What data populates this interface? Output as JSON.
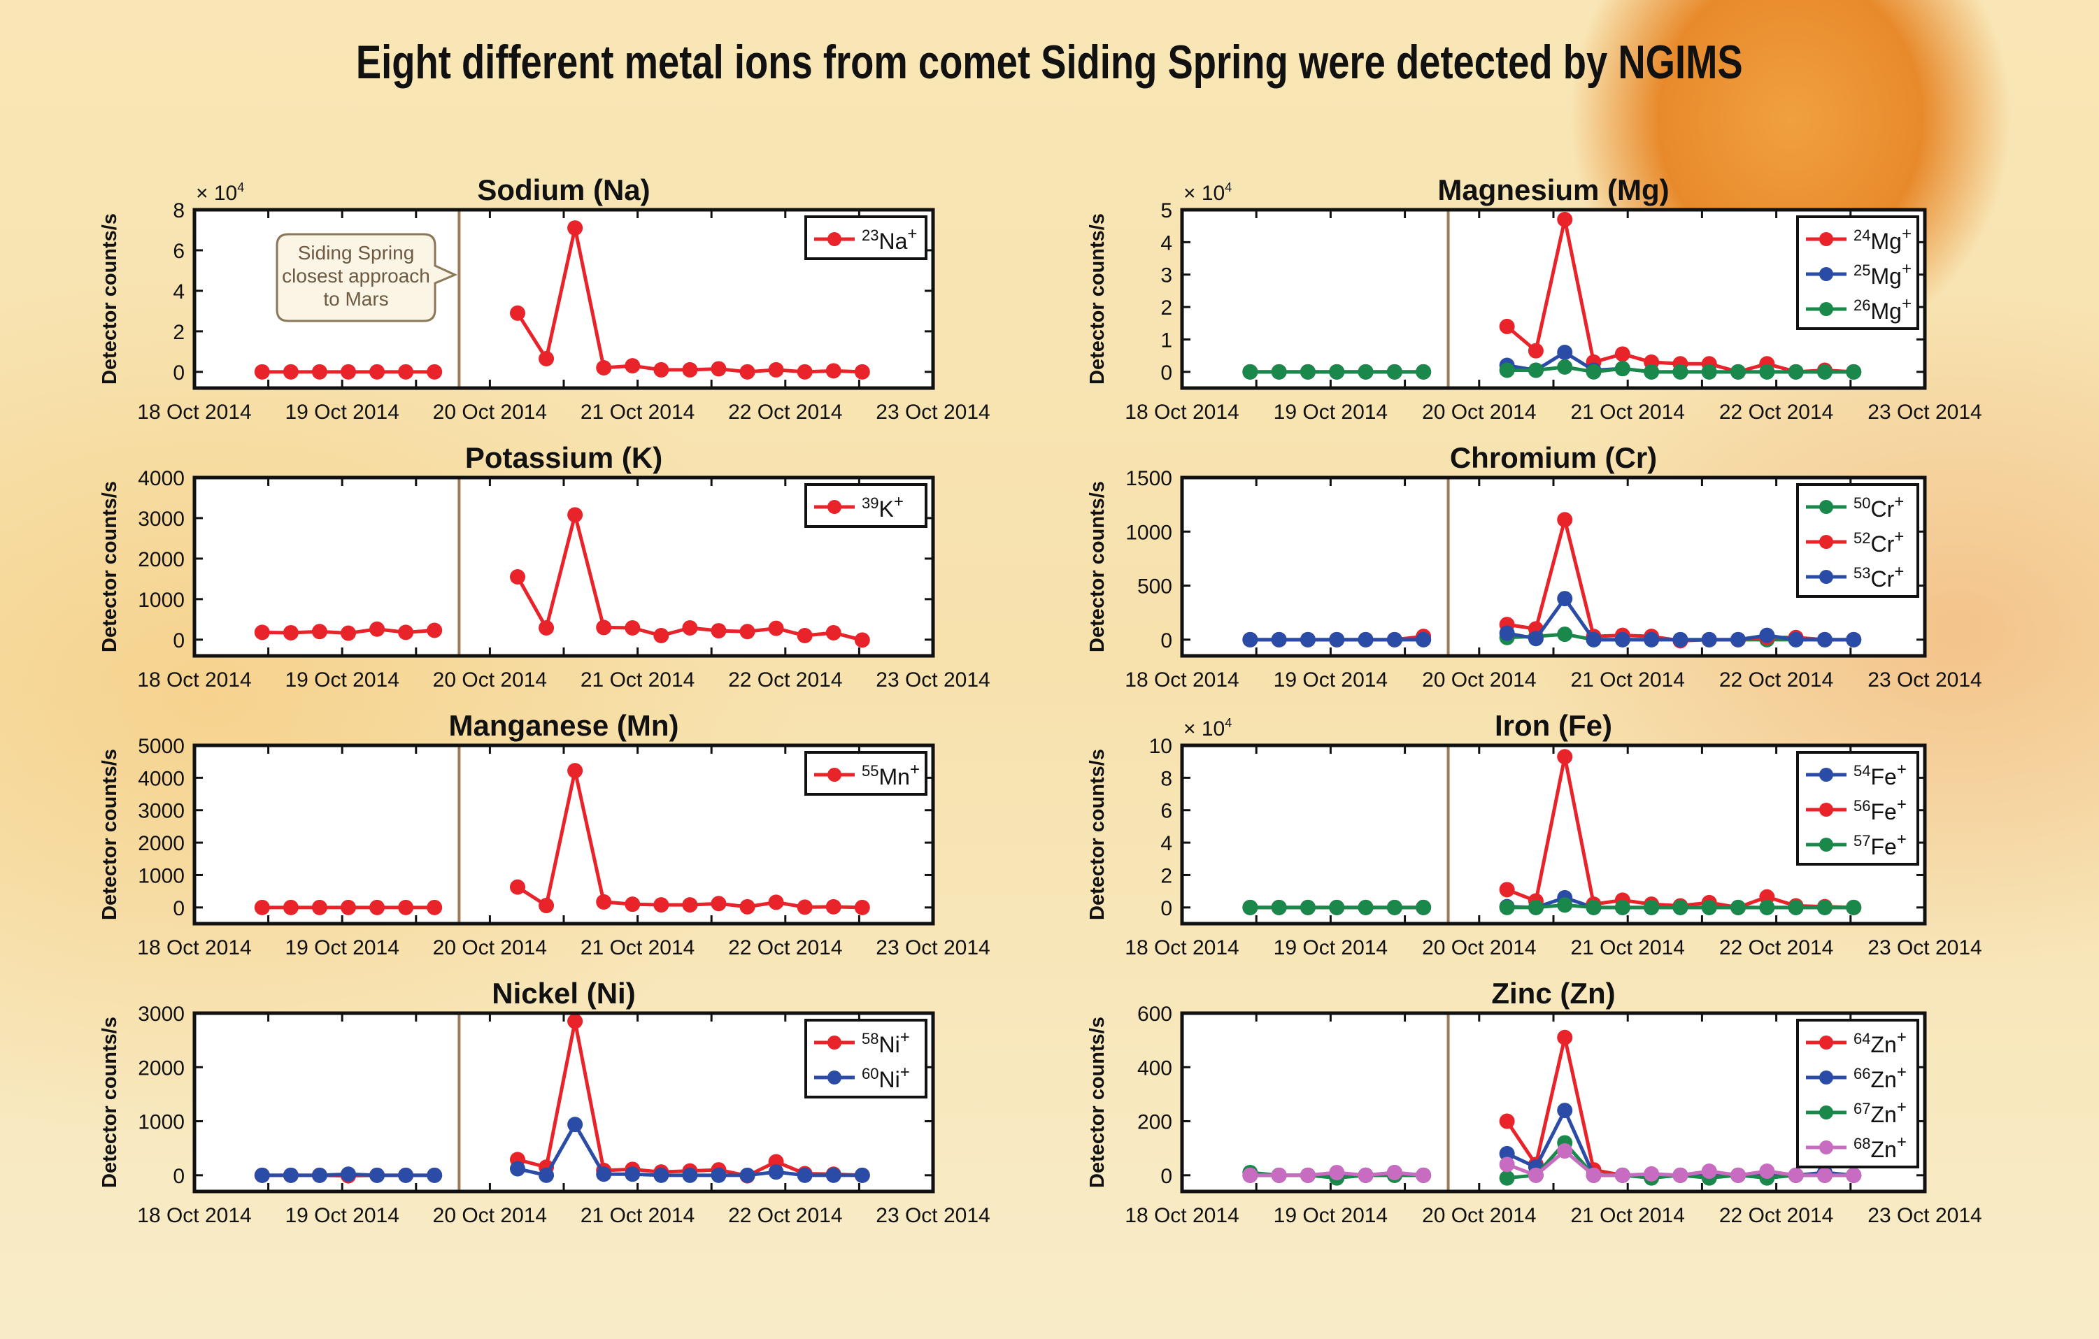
{
  "title": "Eight different metal ions from comet Siding Spring were detected by NGIMS",
  "chart_data": {
    "type": "line",
    "xlim": [
      "2014-10-18T00:00",
      "2014-10-23T00:00"
    ],
    "xticks": [
      "18 Oct 2014",
      "19 Oct 2014",
      "20 Oct 2014",
      "21 Oct 2014",
      "22 Oct 2014",
      "23 Oct 2014"
    ],
    "ylabel": "Detector counts/s",
    "closest_approach_time": "2014-10-19T19:00",
    "closest_approach_color": "#9c7a5a",
    "annotation": {
      "lines": [
        "Siding Spring",
        "closest approach",
        "to Mars"
      ]
    },
    "times_before": [
      "2014-10-18T11:00",
      "2014-10-18T15:40",
      "2014-10-18T20:20",
      "2014-10-19T01:00",
      "2014-10-19T05:40",
      "2014-10-19T10:20",
      "2014-10-19T15:00"
    ],
    "times_after": [
      "2014-10-20T04:30",
      "2014-10-20T09:10",
      "2014-10-20T13:50",
      "2014-10-20T18:30",
      "2014-10-20T23:10",
      "2014-10-21T03:50",
      "2014-10-21T08:30",
      "2014-10-21T13:10",
      "2014-10-21T17:50",
      "2014-10-21T22:30",
      "2014-10-22T03:10",
      "2014-10-22T07:50",
      "2014-10-22T12:30"
    ],
    "colors": {
      "red": "#e8232a",
      "blue": "#2b4ca6",
      "green": "#19884a",
      "magenta": "#c86cc2"
    },
    "panels": [
      {
        "title": "Sodium (Na)",
        "multiplier": "× 10",
        "multiplier_exp": "4",
        "ylim": [
          -0.8,
          8
        ],
        "yticks": [
          0,
          2,
          4,
          6,
          8
        ],
        "series": [
          {
            "mass": "23",
            "symbol": "Na",
            "charge": "+",
            "color": "#e8232a",
            "before": [
              0,
              0,
              0,
              0,
              0,
              0,
              0
            ],
            "after": [
              2.9,
              0.65,
              7.1,
              0.2,
              0.3,
              0.1,
              0.1,
              0.15,
              0,
              0.1,
              0,
              0.05,
              0
            ]
          }
        ]
      },
      {
        "title": "Magnesium (Mg)",
        "multiplier": "× 10",
        "multiplier_exp": "4",
        "ylim": [
          -0.5,
          5
        ],
        "yticks": [
          0,
          1,
          2,
          3,
          4,
          5
        ],
        "series": [
          {
            "mass": "24",
            "symbol": "Mg",
            "charge": "+",
            "color": "#e8232a",
            "before": [
              0,
              0,
              0,
              0,
              0,
              0,
              0
            ],
            "after": [
              1.4,
              0.65,
              4.7,
              0.3,
              0.55,
              0.3,
              0.25,
              0.25,
              0,
              0.25,
              0,
              0.05,
              0
            ]
          },
          {
            "mass": "25",
            "symbol": "Mg",
            "charge": "+",
            "color": "#2b4ca6",
            "before": [
              0,
              0,
              0,
              0,
              0,
              0,
              0
            ],
            "after": [
              0.2,
              0.05,
              0.6,
              0.05,
              0.1,
              0,
              0,
              0,
              0,
              0,
              0,
              0,
              0
            ]
          },
          {
            "mass": "26",
            "symbol": "Mg",
            "charge": "+",
            "color": "#19884a",
            "before": [
              0,
              0,
              0,
              0,
              0,
              0,
              0
            ],
            "after": [
              0.05,
              0.05,
              0.15,
              0,
              0.1,
              0,
              0,
              0,
              0,
              0,
              0,
              0,
              0
            ]
          }
        ]
      },
      {
        "title": "Potassium (K)",
        "ylim": [
          -400,
          4000
        ],
        "yticks": [
          0,
          1000,
          2000,
          3000,
          4000
        ],
        "series": [
          {
            "mass": "39",
            "symbol": "K",
            "charge": "+",
            "color": "#e8232a",
            "before": [
              180,
              170,
              200,
              160,
              260,
              180,
              230
            ],
            "after": [
              1550,
              290,
              3080,
              300,
              290,
              100,
              290,
              220,
              200,
              280,
              100,
              170,
              -10
            ]
          }
        ]
      },
      {
        "title": "Chromium (Cr)",
        "ylim": [
          -150,
          1500
        ],
        "yticks": [
          0,
          500,
          1000,
          1500
        ],
        "series": [
          {
            "mass": "50",
            "symbol": "Cr",
            "charge": "+",
            "color": "#19884a",
            "before": [
              0,
              0,
              0,
              0,
              0,
              0,
              0
            ],
            "after": [
              20,
              30,
              50,
              0,
              0,
              0,
              0,
              0,
              0,
              0,
              0,
              0,
              0
            ]
          },
          {
            "mass": "52",
            "symbol": "Cr",
            "charge": "+",
            "color": "#e8232a",
            "before": [
              0,
              0,
              0,
              0,
              0,
              0,
              30
            ],
            "after": [
              140,
              100,
              1110,
              30,
              40,
              30,
              -10,
              0,
              0,
              20,
              20,
              0,
              0
            ]
          },
          {
            "mass": "53",
            "symbol": "Cr",
            "charge": "+",
            "color": "#2b4ca6",
            "before": [
              0,
              0,
              0,
              0,
              0,
              0,
              0
            ],
            "after": [
              60,
              10,
              380,
              0,
              0,
              0,
              0,
              0,
              0,
              40,
              0,
              0,
              0
            ]
          }
        ]
      },
      {
        "title": "Manganese (Mn)",
        "ylim": [
          -500,
          5000
        ],
        "yticks": [
          0,
          1000,
          2000,
          3000,
          4000,
          5000
        ],
        "series": [
          {
            "mass": "55",
            "symbol": "Mn",
            "charge": "+",
            "color": "#e8232a",
            "before": [
              0,
              0,
              0,
              0,
              0,
              0,
              0
            ],
            "after": [
              630,
              60,
              4220,
              170,
              100,
              80,
              80,
              120,
              20,
              160,
              10,
              20,
              0
            ]
          }
        ]
      },
      {
        "title": "Iron (Fe)",
        "multiplier": "× 10",
        "multiplier_exp": "4",
        "ylim": [
          -1,
          10
        ],
        "yticks": [
          0,
          2,
          4,
          6,
          8,
          10
        ],
        "series": [
          {
            "mass": "54",
            "symbol": "Fe",
            "charge": "+",
            "color": "#2b4ca6",
            "before": [
              0,
              0,
              0,
              0,
              0,
              0,
              0
            ],
            "after": [
              0.05,
              0,
              0.6,
              0,
              0,
              0,
              0,
              0,
              0,
              0,
              0,
              0,
              0
            ]
          },
          {
            "mass": "56",
            "symbol": "Fe",
            "charge": "+",
            "color": "#e8232a",
            "before": [
              0,
              0,
              0,
              0,
              0,
              0,
              0
            ],
            "after": [
              1.1,
              0.4,
              9.3,
              0.2,
              0.45,
              0.2,
              0.1,
              0.3,
              0,
              0.65,
              0.1,
              0.05,
              0
            ]
          },
          {
            "mass": "57",
            "symbol": "Fe",
            "charge": "+",
            "color": "#19884a",
            "before": [
              0,
              0,
              0,
              0,
              0,
              0,
              0
            ],
            "after": [
              0,
              0,
              0.15,
              0,
              0,
              0,
              0,
              0,
              0,
              0,
              0,
              0,
              0
            ]
          }
        ]
      },
      {
        "title": "Nickel (Ni)",
        "ylim": [
          -300,
          3000
        ],
        "yticks": [
          0,
          1000,
          2000,
          3000
        ],
        "series": [
          {
            "mass": "58",
            "symbol": "Ni",
            "charge": "+",
            "color": "#e8232a",
            "before": [
              0,
              0,
              0,
              -10,
              0,
              0,
              0
            ],
            "after": [
              290,
              150,
              2850,
              90,
              110,
              60,
              80,
              100,
              -10,
              250,
              30,
              20,
              0
            ]
          },
          {
            "mass": "60",
            "symbol": "Ni",
            "charge": "+",
            "color": "#2b4ca6",
            "before": [
              0,
              0,
              0,
              20,
              0,
              0,
              0
            ],
            "after": [
              120,
              0,
              940,
              20,
              20,
              0,
              0,
              0,
              0,
              60,
              0,
              0,
              0
            ]
          }
        ]
      },
      {
        "title": "Zinc (Zn)",
        "ylim": [
          -60,
          600
        ],
        "yticks": [
          0,
          200,
          400,
          600
        ],
        "series": [
          {
            "mass": "64",
            "symbol": "Zn",
            "charge": "+",
            "color": "#e8232a",
            "before": [
              0,
              0,
              0,
              0,
              0,
              0,
              0
            ],
            "after": [
              200,
              40,
              510,
              20,
              0,
              0,
              0,
              0,
              0,
              0,
              0,
              0,
              0
            ]
          },
          {
            "mass": "66",
            "symbol": "Zn",
            "charge": "+",
            "color": "#2b4ca6",
            "before": [
              0,
              0,
              0,
              0,
              0,
              10,
              0
            ],
            "after": [
              80,
              30,
              240,
              0,
              0,
              0,
              0,
              10,
              0,
              10,
              0,
              10,
              0
            ]
          },
          {
            "mass": "67",
            "symbol": "Zn",
            "charge": "+",
            "color": "#19884a",
            "before": [
              10,
              0,
              0,
              -10,
              0,
              0,
              0
            ],
            "after": [
              -10,
              0,
              120,
              0,
              0,
              -10,
              0,
              -10,
              0,
              -10,
              0,
              0,
              0
            ]
          },
          {
            "mass": "68",
            "symbol": "Zn",
            "charge": "+",
            "color": "#c86cc2",
            "before": [
              0,
              0,
              0,
              10,
              0,
              10,
              0
            ],
            "after": [
              40,
              0,
              90,
              0,
              0,
              5,
              0,
              15,
              0,
              15,
              0,
              0,
              0
            ]
          }
        ]
      }
    ]
  }
}
